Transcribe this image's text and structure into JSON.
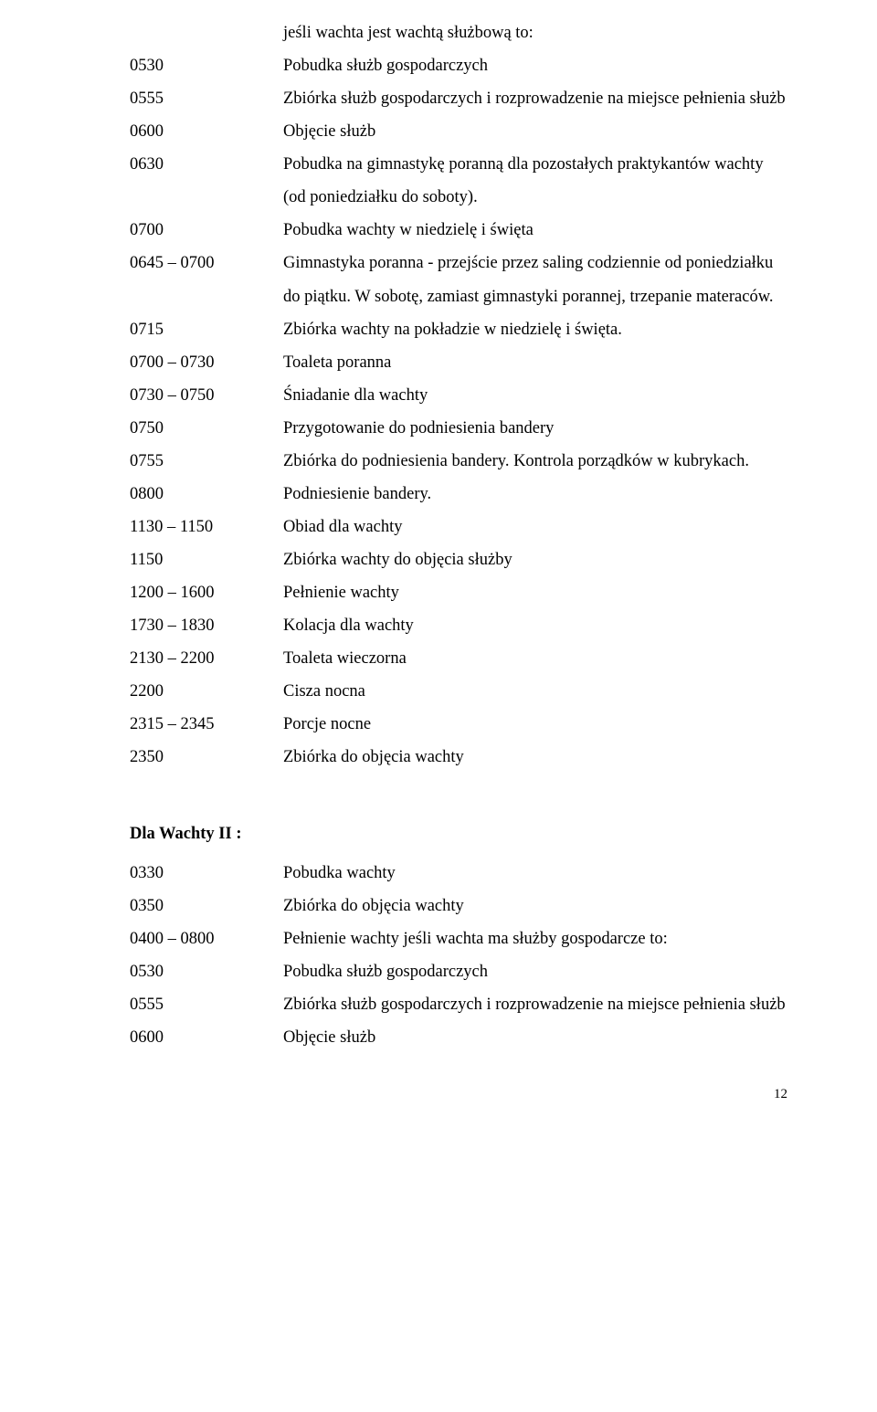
{
  "intro_line": "jeśli wachta jest wachtą służbową to:",
  "schedule1": [
    {
      "time": "0530",
      "desc": "Pobudka służb gospodarczych"
    },
    {
      "time": "0555",
      "desc": "Zbiórka służb gospodarczych i rozprowadzenie na miejsce pełnienia służb"
    },
    {
      "time": "0600",
      "desc": "Objęcie służb"
    },
    {
      "time": "0630",
      "desc": "Pobudka na gimnastykę poranną dla pozostałych praktykantów wachty (od poniedziałku do soboty)."
    },
    {
      "time": "0700",
      "desc": "Pobudka wachty w niedzielę i święta"
    },
    {
      "time": "0645 – 0700",
      "desc": "Gimnastyka poranna - przejście przez saling codziennie od poniedziałku do piątku. W sobotę, zamiast gimnastyki porannej,  trzepanie materaców."
    },
    {
      "time": "0715",
      "desc": "Zbiórka wachty na pokładzie w niedzielę i święta."
    },
    {
      "time": "0700 – 0730",
      "desc": "Toaleta poranna"
    },
    {
      "time": "0730 – 0750",
      "desc": "Śniadanie dla wachty"
    },
    {
      "time": "0750",
      "desc": "Przygotowanie do podniesienia bandery"
    },
    {
      "time": "0755",
      "desc": "Zbiórka do podniesienia bandery. Kontrola porządków w kubrykach."
    },
    {
      "time": "0800",
      "desc": "Podniesienie bandery."
    },
    {
      "time": "1130 – 1150",
      "desc": "Obiad dla wachty"
    },
    {
      "time": "1150",
      "desc": "Zbiórka wachty do objęcia służby"
    },
    {
      "time": "1200 – 1600",
      "desc": "Pełnienie wachty"
    },
    {
      "time": "1730 – 1830",
      "desc": "Kolacja dla wachty"
    },
    {
      "time": "2130 – 2200",
      "desc": "Toaleta wieczorna"
    },
    {
      "time": "2200",
      "desc": "Cisza nocna"
    },
    {
      "time": "2315 – 2345",
      "desc": "Porcje nocne"
    },
    {
      "time": "2350",
      "desc": "Zbiórka do objęcia wachty"
    }
  ],
  "section_title": "Dla Wachty II :",
  "schedule2": [
    {
      "time": "0330",
      "desc": "Pobudka wachty"
    },
    {
      "time": "0350",
      "desc": "Zbiórka do objęcia wachty"
    },
    {
      "time": "0400 – 0800",
      "desc": "Pełnienie wachty jeśli wachta ma służby gospodarcze to:"
    },
    {
      "time": "0530",
      "desc": "Pobudka służb gospodarczych"
    },
    {
      "time": "0555",
      "desc": "Zbiórka służb gospodarczych i rozprowadzenie na miejsce pełnienia służb"
    },
    {
      "time": "0600",
      "desc": "Objęcie służb"
    }
  ],
  "page_number": "12"
}
